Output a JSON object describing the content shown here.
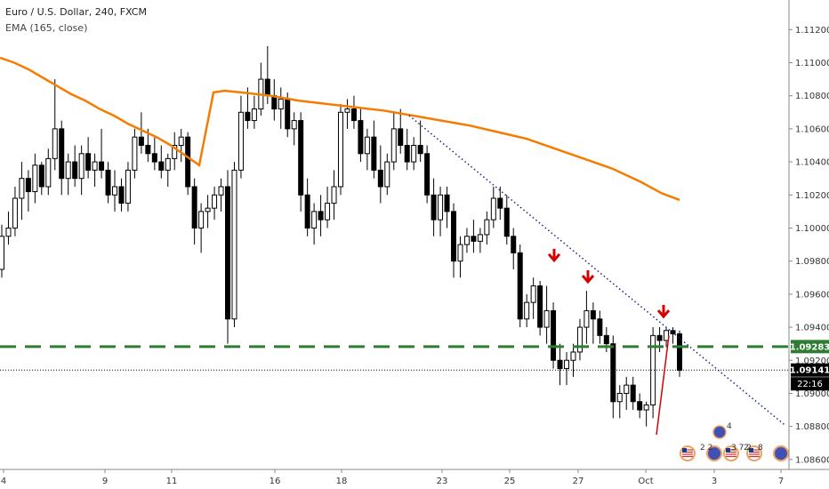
{
  "header": {
    "title": "Euro / U.S. Dollar, 240, FXCM",
    "indicator": "EMA (165, close)"
  },
  "chart_data": {
    "type": "candlestick",
    "ylim": [
      1.0854,
      1.1125
    ],
    "y_ticks": [
      "1.11200",
      "1.11000",
      "1.10800",
      "1.10600",
      "1.10400",
      "1.10200",
      "1.10000",
      "1.09800",
      "1.09600",
      "1.09400",
      "1.09200",
      "1.09000",
      "1.08800",
      "1.08600"
    ],
    "x_ticks": [
      "4",
      "9",
      "11",
      "16",
      "18",
      "23",
      "25",
      "27",
      "Oct",
      "3",
      "7"
    ],
    "candles": [
      [
        1.0975,
        1.1002,
        1.097,
        1.0995
      ],
      [
        1.0995,
        1.101,
        1.099,
        1.1
      ],
      [
        1.1,
        1.1025,
        1.0995,
        1.1018
      ],
      [
        1.1018,
        1.104,
        1.1005,
        1.103
      ],
      [
        1.103,
        1.1035,
        1.101,
        1.1022
      ],
      [
        1.1022,
        1.1045,
        1.1015,
        1.1038
      ],
      [
        1.1038,
        1.104,
        1.102,
        1.1025
      ],
      [
        1.1025,
        1.1048,
        1.102,
        1.1042
      ],
      [
        1.1042,
        1.109,
        1.1035,
        1.106
      ],
      [
        1.106,
        1.1065,
        1.102,
        1.103
      ],
      [
        1.103,
        1.1045,
        1.102,
        1.104
      ],
      [
        1.104,
        1.105,
        1.1025,
        1.103
      ],
      [
        1.103,
        1.105,
        1.102,
        1.1045
      ],
      [
        1.1045,
        1.1055,
        1.103,
        1.1035
      ],
      [
        1.1035,
        1.1045,
        1.1025,
        1.104
      ],
      [
        1.104,
        1.106,
        1.103,
        1.1035
      ],
      [
        1.1035,
        1.104,
        1.1015,
        1.102
      ],
      [
        1.102,
        1.1035,
        1.101,
        1.1025
      ],
      [
        1.1025,
        1.103,
        1.101,
        1.1015
      ],
      [
        1.1015,
        1.104,
        1.101,
        1.1035
      ],
      [
        1.1035,
        1.106,
        1.103,
        1.1055
      ],
      [
        1.1055,
        1.107,
        1.1045,
        1.105
      ],
      [
        1.105,
        1.106,
        1.104,
        1.1045
      ],
      [
        1.1045,
        1.1055,
        1.1035,
        1.104
      ],
      [
        1.104,
        1.105,
        1.103,
        1.1035
      ],
      [
        1.1035,
        1.1045,
        1.1025,
        1.1042
      ],
      [
        1.1042,
        1.1058,
        1.1035,
        1.105
      ],
      [
        1.105,
        1.106,
        1.104,
        1.1055
      ],
      [
        1.1055,
        1.1058,
        1.102,
        1.1025
      ],
      [
        1.1025,
        1.103,
        1.099,
        1.1
      ],
      [
        1.1,
        1.1015,
        1.0985,
        1.101
      ],
      [
        1.101,
        1.102,
        1.1,
        1.1012
      ],
      [
        1.1012,
        1.1025,
        1.1005,
        1.102
      ],
      [
        1.102,
        1.103,
        1.101,
        1.1025
      ],
      [
        1.1025,
        1.1035,
        1.093,
        1.0945
      ],
      [
        1.0945,
        1.104,
        1.094,
        1.1035
      ],
      [
        1.1035,
        1.108,
        1.103,
        1.107
      ],
      [
        1.107,
        1.1085,
        1.106,
        1.1065
      ],
      [
        1.1065,
        1.108,
        1.106,
        1.1072
      ],
      [
        1.1072,
        1.11,
        1.1068,
        1.109
      ],
      [
        1.109,
        1.111,
        1.1075,
        1.108
      ],
      [
        1.108,
        1.109,
        1.1065,
        1.1072
      ],
      [
        1.1072,
        1.1085,
        1.106,
        1.1078
      ],
      [
        1.1078,
        1.1082,
        1.1055,
        1.106
      ],
      [
        1.106,
        1.107,
        1.105,
        1.1065
      ],
      [
        1.1065,
        1.107,
        1.101,
        1.102
      ],
      [
        1.102,
        1.103,
        1.0995,
        1.1
      ],
      [
        1.1,
        1.1015,
        1.099,
        1.101
      ],
      [
        1.101,
        1.102,
        1.0995,
        1.1005
      ],
      [
        1.1005,
        1.1025,
        1.1,
        1.1015
      ],
      [
        1.1015,
        1.1035,
        1.1005,
        1.1025
      ],
      [
        1.1025,
        1.1075,
        1.102,
        1.107
      ],
      [
        1.107,
        1.1078,
        1.106,
        1.1072
      ],
      [
        1.1072,
        1.108,
        1.106,
        1.1065
      ],
      [
        1.1065,
        1.1072,
        1.104,
        1.1045
      ],
      [
        1.1045,
        1.106,
        1.1035,
        1.1055
      ],
      [
        1.1055,
        1.1065,
        1.103,
        1.1035
      ],
      [
        1.1035,
        1.105,
        1.1015,
        1.1025
      ],
      [
        1.1025,
        1.1045,
        1.102,
        1.104
      ],
      [
        1.104,
        1.107,
        1.1035,
        1.106
      ],
      [
        1.106,
        1.1072,
        1.1045,
        1.105
      ],
      [
        1.105,
        1.106,
        1.1035,
        1.104
      ],
      [
        1.104,
        1.1055,
        1.1035,
        1.105
      ],
      [
        1.105,
        1.1065,
        1.104,
        1.1045
      ],
      [
        1.1045,
        1.105,
        1.1015,
        1.102
      ],
      [
        1.102,
        1.103,
        1.0995,
        1.1005
      ],
      [
        1.1005,
        1.1025,
        1.0995,
        1.102
      ],
      [
        1.102,
        1.1025,
        1.1,
        1.101
      ],
      [
        1.101,
        1.1015,
        1.097,
        1.098
      ],
      [
        1.098,
        1.0995,
        1.097,
        1.099
      ],
      [
        1.099,
        1.1,
        1.0985,
        1.0995
      ],
      [
        1.0995,
        1.1005,
        1.0985,
        1.0992
      ],
      [
        1.0992,
        1.1,
        1.0985,
        1.0996
      ],
      [
        1.0996,
        1.101,
        1.099,
        1.1005
      ],
      [
        1.1005,
        1.1025,
        1.1,
        1.1018
      ],
      [
        1.1018,
        1.1025,
        1.1005,
        1.1012
      ],
      [
        1.1012,
        1.102,
        1.099,
        1.0995
      ],
      [
        1.0995,
        1.1,
        1.0975,
        1.0985
      ],
      [
        1.0985,
        1.099,
        1.094,
        1.0945
      ],
      [
        1.0945,
        1.096,
        1.094,
        1.0955
      ],
      [
        1.0955,
        1.097,
        1.0945,
        1.0965
      ],
      [
        1.0965,
        1.0968,
        1.0935,
        1.094
      ],
      [
        1.094,
        1.0965,
        1.093,
        1.095
      ],
      [
        1.095,
        1.0955,
        1.0915,
        1.092
      ],
      [
        1.092,
        1.093,
        1.0905,
        1.0915
      ],
      [
        1.0915,
        1.0925,
        1.0905,
        1.092
      ],
      [
        1.092,
        1.093,
        1.091,
        1.0925
      ],
      [
        1.0925,
        1.0945,
        1.092,
        1.094
      ],
      [
        1.094,
        1.0962,
        1.093,
        1.095
      ],
      [
        1.095,
        1.0955,
        1.093,
        1.0945
      ],
      [
        1.0945,
        1.095,
        1.093,
        1.0935
      ],
      [
        1.0935,
        1.094,
        1.0925,
        1.093
      ],
      [
        1.093,
        1.0935,
        1.0885,
        1.0895
      ],
      [
        1.0895,
        1.0905,
        1.0885,
        1.09
      ],
      [
        1.09,
        1.091,
        1.089,
        1.0905
      ],
      [
        1.0905,
        1.091,
        1.089,
        1.0895
      ],
      [
        1.0895,
        1.09,
        1.0885,
        1.089
      ],
      [
        1.089,
        1.0895,
        1.088,
        1.0893
      ],
      [
        1.0893,
        1.094,
        1.0885,
        1.0935
      ],
      [
        1.0935,
        1.094,
        1.0925,
        1.0932
      ],
      [
        1.0932,
        1.094,
        1.0928,
        1.0938
      ],
      [
        1.0938,
        1.094,
        1.093,
        1.0936
      ],
      [
        1.0936,
        1.0938,
        1.091,
        1.0914
      ]
    ],
    "ema_points": [
      [
        0,
        1.1103
      ],
      [
        16,
        1.11
      ],
      [
        32,
        1.1096
      ],
      [
        48,
        1.1091
      ],
      [
        64,
        1.1086
      ],
      [
        80,
        1.1081
      ],
      [
        96,
        1.1077
      ],
      [
        112,
        1.1072
      ],
      [
        128,
        1.1068
      ],
      [
        144,
        1.1063
      ],
      [
        160,
        1.1059
      ],
      [
        176,
        1.1055
      ],
      [
        192,
        1.105
      ],
      [
        208,
        1.1044
      ],
      [
        224,
        1.1038
      ],
      [
        240,
        1.1082
      ],
      [
        252,
        1.1083
      ],
      [
        272,
        1.1082
      ],
      [
        304,
        1.108
      ],
      [
        336,
        1.1077
      ],
      [
        368,
        1.1075
      ],
      [
        400,
        1.1073
      ],
      [
        432,
        1.1071
      ],
      [
        464,
        1.1068
      ],
      [
        496,
        1.1065
      ],
      [
        528,
        1.1062
      ],
      [
        560,
        1.1058
      ],
      [
        592,
        1.1054
      ],
      [
        624,
        1.1048
      ],
      [
        656,
        1.1042
      ],
      [
        688,
        1.1036
      ],
      [
        720,
        1.1028
      ],
      [
        744,
        1.1021
      ],
      [
        764,
        1.1017
      ]
    ],
    "support_level": 1.09283,
    "support_label": "1.09283",
    "last_price": 1.09141,
    "last_price_label": "1.09141",
    "countdown_label": "22:16",
    "colors": {
      "ema": "#f57c00",
      "support": "#2e7d32",
      "trendline": "#1a237e",
      "arrows": "#d50000",
      "wedge": "#d50000",
      "bull_body": "#ffffff",
      "bear_body": "#000000"
    }
  },
  "events": {
    "badge_numbers": [
      "4",
      "2 2",
      "3 7 2",
      "2",
      "8"
    ]
  }
}
